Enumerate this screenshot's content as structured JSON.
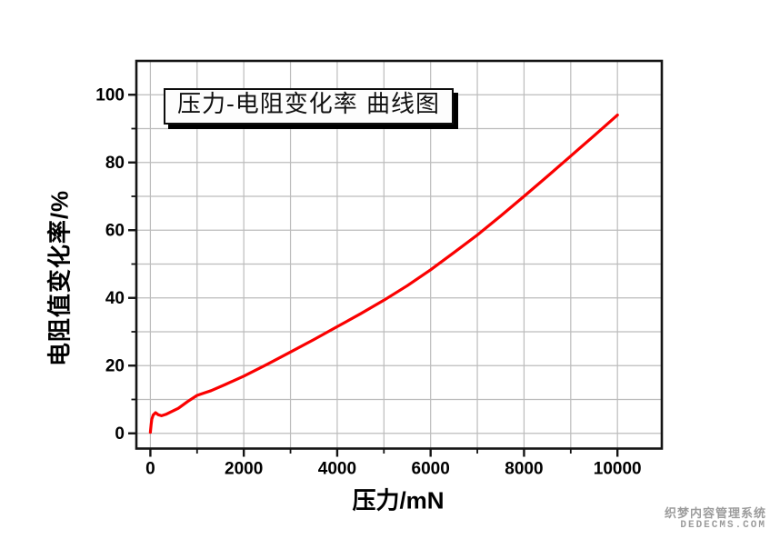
{
  "chart_data": {
    "type": "line",
    "title": "压力-电阻变化率 曲线图",
    "xlabel": "压力/mN",
    "ylabel": "电阻值变化率/%",
    "xlim": [
      -300,
      10950
    ],
    "ylim": [
      -4.5,
      110
    ],
    "x_major_ticks": [
      0,
      2000,
      4000,
      6000,
      8000,
      10000
    ],
    "x_minor_ticks": [
      1000,
      3000,
      5000,
      7000,
      9000
    ],
    "y_major_ticks": [
      0,
      20,
      40,
      60,
      80,
      100
    ],
    "y_minor_ticks": [
      10,
      30,
      50,
      70,
      90
    ],
    "grid": {
      "visible": true,
      "x_step": 1000,
      "y_step": 10
    },
    "legend_position": "none",
    "series": [
      {
        "name": "压力-电阻变化率",
        "color": "#fa0000",
        "points": [
          [
            0,
            0.3
          ],
          [
            15,
            2.5
          ],
          [
            30,
            4.2
          ],
          [
            60,
            5.4
          ],
          [
            110,
            6.1
          ],
          [
            170,
            5.5
          ],
          [
            240,
            5.2
          ],
          [
            330,
            5.6
          ],
          [
            450,
            6.4
          ],
          [
            600,
            7.4
          ],
          [
            800,
            9.4
          ],
          [
            1000,
            11.2
          ],
          [
            1150,
            11.9
          ],
          [
            1300,
            12.6
          ],
          [
            1600,
            14.4
          ],
          [
            2000,
            16.9
          ],
          [
            2500,
            20.4
          ],
          [
            3000,
            24.0
          ],
          [
            3500,
            27.7
          ],
          [
            4000,
            31.5
          ],
          [
            4500,
            35.3
          ],
          [
            5000,
            39.3
          ],
          [
            5500,
            43.6
          ],
          [
            6000,
            48.3
          ],
          [
            6500,
            53.4
          ],
          [
            7000,
            58.6
          ],
          [
            7500,
            64.2
          ],
          [
            8000,
            70.0
          ],
          [
            8500,
            75.9
          ],
          [
            9000,
            81.9
          ],
          [
            9500,
            87.9
          ],
          [
            10000,
            94.0
          ]
        ]
      }
    ]
  },
  "watermark": {
    "line1": "织梦内容管理系统",
    "line2": "DEDECMS.COM"
  },
  "colors": {
    "curve": "#fa0000",
    "grid": "#bcbcbc",
    "frame": "#141414",
    "tick": "#141414",
    "label_text": "#000000",
    "background": "#ffffff",
    "watermark": "#9c9c9c"
  }
}
